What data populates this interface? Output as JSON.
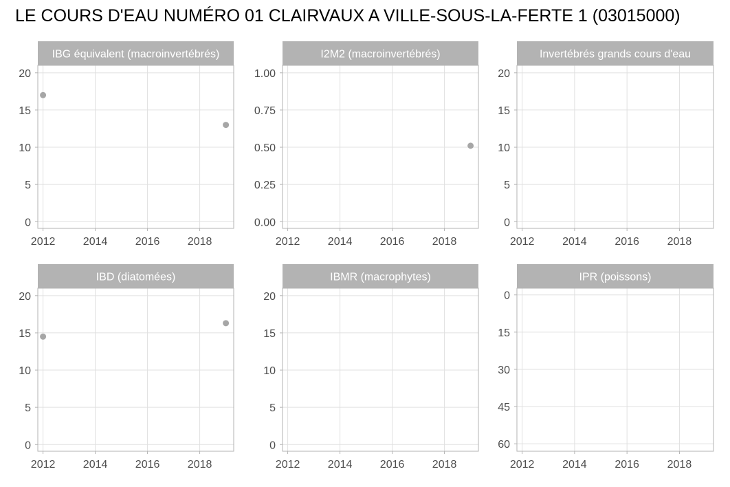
{
  "title": "LE COURS D'EAU NUMÉRO 01 CLAIRVAUX A VILLE-SOUS-LA-FERTE 1 (03015000)",
  "colors": {
    "strip_bg": "#b3b3b3",
    "strip_text": "#ffffff",
    "panel_border": "#b3b3b3",
    "grid": "#e0e0e0",
    "point": "#a6a6a6",
    "tick_label": "#4d4d4d"
  },
  "chart_data": [
    {
      "type": "scatter",
      "title": "IBG équivalent (macroinvertébrés)",
      "xlim": [
        2011.8,
        2019.3
      ],
      "ylim": [
        -0.9,
        21
      ],
      "x_ticks": [
        2012,
        2014,
        2016,
        2018
      ],
      "y_ticks": [
        0,
        5,
        10,
        15,
        20
      ],
      "y_tick_labels": [
        "0",
        "5",
        "10",
        "15",
        "20"
      ],
      "reverse_y": false,
      "grid": true,
      "points": [
        {
          "x": 2012,
          "y": 17
        },
        {
          "x": 2019,
          "y": 13
        }
      ]
    },
    {
      "type": "scatter",
      "title": "I2M2 (macroinvertébrés)",
      "xlim": [
        2011.8,
        2019.3
      ],
      "ylim": [
        -0.045,
        1.05
      ],
      "x_ticks": [
        2012,
        2014,
        2016,
        2018
      ],
      "y_ticks": [
        0,
        0.25,
        0.5,
        0.75,
        1
      ],
      "y_tick_labels": [
        "0.00",
        "0.25",
        "0.50",
        "0.75",
        "1.00"
      ],
      "reverse_y": false,
      "grid": true,
      "points": [
        {
          "x": 2019,
          "y": 0.51
        }
      ]
    },
    {
      "type": "scatter",
      "title": "Invertébrés grands cours d'eau",
      "xlim": [
        2011.8,
        2019.3
      ],
      "ylim": [
        -0.9,
        21
      ],
      "x_ticks": [
        2012,
        2014,
        2016,
        2018
      ],
      "y_ticks": [
        0,
        5,
        10,
        15,
        20
      ],
      "y_tick_labels": [
        "0",
        "5",
        "10",
        "15",
        "20"
      ],
      "reverse_y": false,
      "grid": true,
      "points": []
    },
    {
      "type": "scatter",
      "title": "IBD (diatomées)",
      "xlim": [
        2011.8,
        2019.3
      ],
      "ylim": [
        -0.9,
        21
      ],
      "x_ticks": [
        2012,
        2014,
        2016,
        2018
      ],
      "y_ticks": [
        0,
        5,
        10,
        15,
        20
      ],
      "y_tick_labels": [
        "0",
        "5",
        "10",
        "15",
        "20"
      ],
      "reverse_y": false,
      "grid": true,
      "points": [
        {
          "x": 2012,
          "y": 14.5
        },
        {
          "x": 2019,
          "y": 16.3
        }
      ]
    },
    {
      "type": "scatter",
      "title": "IBMR (macrophytes)",
      "xlim": [
        2011.8,
        2019.3
      ],
      "ylim": [
        -0.9,
        21
      ],
      "x_ticks": [
        2012,
        2014,
        2016,
        2018
      ],
      "y_ticks": [
        0,
        5,
        10,
        15,
        20
      ],
      "y_tick_labels": [
        "0",
        "5",
        "10",
        "15",
        "20"
      ],
      "reverse_y": false,
      "grid": true,
      "points": []
    },
    {
      "type": "scatter",
      "title": "IPR (poissons)",
      "xlim": [
        2011.8,
        2019.3
      ],
      "ylim": [
        -2.7,
        63
      ],
      "x_ticks": [
        2012,
        2014,
        2016,
        2018
      ],
      "y_ticks": [
        0,
        15,
        30,
        45,
        60
      ],
      "y_tick_labels": [
        "0",
        "15",
        "30",
        "45",
        "60"
      ],
      "reverse_y": true,
      "grid": true,
      "points": []
    }
  ]
}
